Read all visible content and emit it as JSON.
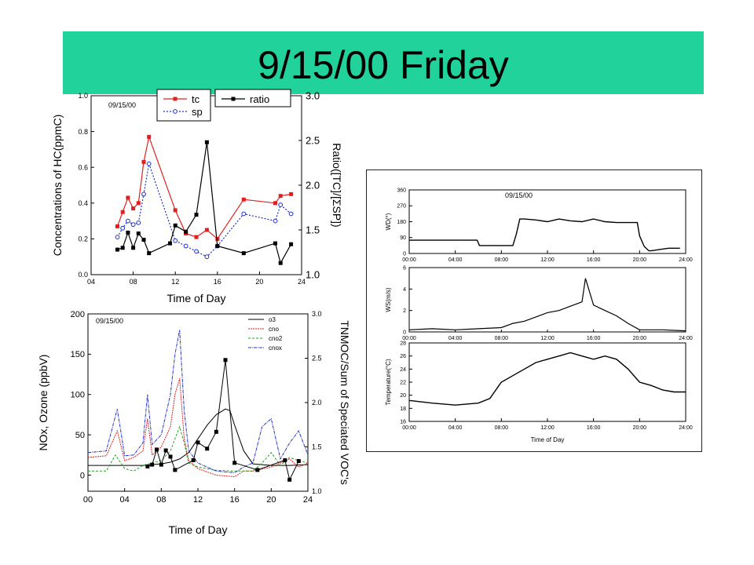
{
  "page": {
    "title": "9/15/00 Friday"
  },
  "chart_data": [
    {
      "type": "line",
      "annotation": "09/15/00",
      "xlabel": "Time of Day",
      "ylabel": "Concentrations of HC(ppmC)",
      "y2label": "Ratio([TC]/[ΣSP])",
      "xlim": [
        4,
        24
      ],
      "ylim": [
        0,
        1.0
      ],
      "y2lim": [
        1.0,
        3.0
      ],
      "xticks": [
        "04",
        "08",
        "12",
        "16",
        "20",
        "24"
      ],
      "yticks": [
        "0.0",
        "0.2",
        "0.4",
        "0.6",
        "0.8",
        "1.0"
      ],
      "y2ticks": [
        "1.0",
        "1.5",
        "2.0",
        "2.5",
        "3.0"
      ],
      "legend": "top",
      "series": [
        {
          "name": "tc",
          "axis": "left",
          "color": "#e02020",
          "marker": "square-filled",
          "x": [
            6.5,
            7.0,
            7.5,
            8.0,
            8.5,
            9.0,
            9.5,
            12.0,
            13.0,
            14.0,
            15.0,
            16.0,
            18.5,
            21.5,
            22.0,
            23.0
          ],
          "y": [
            0.27,
            0.35,
            0.43,
            0.37,
            0.4,
            0.63,
            0.77,
            0.36,
            0.23,
            0.21,
            0.25,
            0.2,
            0.42,
            0.4,
            0.44,
            0.45
          ]
        },
        {
          "name": "sp",
          "axis": "left",
          "color": "#2030d0",
          "marker": "circle-open",
          "x": [
            6.5,
            7.0,
            7.5,
            8.0,
            8.5,
            9.0,
            9.5,
            12.0,
            13.0,
            14.0,
            15.0,
            16.0,
            18.5,
            21.5,
            22.0,
            23.0
          ],
          "y": [
            0.21,
            0.26,
            0.3,
            0.28,
            0.29,
            0.45,
            0.62,
            0.19,
            0.16,
            0.13,
            0.1,
            0.16,
            0.34,
            0.3,
            0.39,
            0.34
          ]
        },
        {
          "name": "ratio",
          "axis": "right",
          "color": "#000000",
          "marker": "square-filled",
          "x": [
            6.5,
            7.0,
            7.5,
            8.0,
            8.5,
            9.0,
            9.5,
            11.5,
            12.0,
            13.0,
            14.0,
            15.0,
            16.0,
            18.5,
            21.5,
            22.0,
            23.0
          ],
          "y": [
            1.28,
            1.3,
            1.47,
            1.3,
            1.46,
            1.39,
            1.24,
            1.35,
            1.55,
            1.48,
            1.67,
            2.48,
            1.32,
            1.24,
            1.35,
            1.13,
            1.34
          ]
        }
      ]
    },
    {
      "type": "line",
      "annotation": "09/15/00",
      "xlabel": "Time of Day",
      "ylabel": "NOx, Ozone (ppbV)",
      "y2label": "TNMOC/Sum of Speciated VOC's",
      "xlim": [
        0,
        24
      ],
      "ylim": [
        -20,
        200
      ],
      "y2lim": [
        1.0,
        3.0
      ],
      "xticks": [
        "00",
        "04",
        "08",
        "12",
        "16",
        "20",
        "24"
      ],
      "yticks": [
        "0",
        "50",
        "100",
        "150",
        "200"
      ],
      "y2ticks": [
        "1.0",
        "1.5",
        "2.0",
        "2.5",
        "3.0"
      ],
      "legend": "top-right",
      "series": [
        {
          "name": "o3",
          "color": "#000000",
          "x": [
            0,
            2,
            4,
            6,
            8,
            9,
            10,
            11,
            12,
            13,
            14,
            15,
            15.5,
            16,
            17,
            18,
            20,
            22,
            24
          ],
          "y": [
            12,
            12,
            12,
            12,
            14,
            16,
            20,
            28,
            45,
            62,
            75,
            82,
            80,
            62,
            30,
            14,
            12,
            12,
            13
          ]
        },
        {
          "name": "cno",
          "color": "#e02020",
          "x": [
            0,
            2,
            3.2,
            4,
            5,
            6,
            6.5,
            7,
            8,
            9,
            9.5,
            10,
            10.5,
            11,
            12,
            14,
            16,
            17,
            18,
            20,
            21,
            22,
            23,
            24
          ],
          "y": [
            22,
            24,
            55,
            18,
            22,
            30,
            70,
            25,
            35,
            60,
            100,
            120,
            45,
            18,
            8,
            0,
            -2,
            5,
            5,
            10,
            15,
            20,
            10,
            15
          ]
        },
        {
          "name": "cno2",
          "color": "#22a022",
          "x": [
            0,
            2,
            3,
            4,
            5,
            6,
            7,
            8,
            9,
            9.5,
            10,
            10.5,
            11,
            12,
            14,
            16,
            18,
            19,
            20,
            21,
            22,
            23,
            24
          ],
          "y": [
            5,
            5,
            25,
            8,
            5,
            12,
            15,
            18,
            30,
            45,
            60,
            40,
            15,
            10,
            6,
            5,
            5,
            15,
            28,
            12,
            22,
            18,
            15
          ]
        },
        {
          "name": "cnox",
          "color": "#2030d0",
          "x": [
            0,
            2,
            3.2,
            4,
            5,
            6,
            6.5,
            7,
            8,
            9,
            9.5,
            10,
            10.5,
            11,
            12,
            14,
            16,
            17,
            18,
            19,
            20,
            21,
            22,
            23,
            24
          ],
          "y": [
            28,
            30,
            82,
            24,
            25,
            40,
            100,
            38,
            50,
            100,
            150,
            180,
            80,
            30,
            15,
            5,
            3,
            10,
            15,
            60,
            70,
            20,
            40,
            55,
            25
          ]
        },
        {
          "name": "",
          "axis": "right",
          "color": "#000000",
          "marker": "square-filled",
          "x": [
            6.5,
            7.0,
            7.5,
            8.0,
            8.5,
            9.0,
            9.5,
            11.5,
            12.0,
            13.0,
            14.0,
            15.0,
            16.0,
            18.5,
            21.5,
            22.0,
            23.0
          ],
          "y": [
            1.28,
            1.3,
            1.47,
            1.3,
            1.46,
            1.39,
            1.24,
            1.35,
            1.55,
            1.48,
            1.67,
            2.48,
            1.32,
            1.24,
            1.35,
            1.13,
            1.34
          ]
        }
      ]
    },
    {
      "type": "line",
      "annotation": "09/15/00",
      "ylabel": "WD(°)",
      "xlim": [
        0,
        24
      ],
      "ylim": [
        0,
        360
      ],
      "xticks": [
        "00:00",
        "04:00",
        "08:00",
        "12:00",
        "16:00",
        "20:00",
        "24:00"
      ],
      "yticks": [
        "0",
        "90",
        "180",
        "270",
        "360"
      ],
      "series": [
        {
          "name": "",
          "color": "#000000",
          "x": [
            0,
            2,
            4,
            5.9,
            6.1,
            9,
            9.3,
            9.6,
            10,
            11,
            12,
            13,
            14,
            15,
            16,
            17,
            18,
            19,
            19.8,
            20,
            20.4,
            20.8,
            21,
            22.5,
            23.5
          ],
          "y": [
            75,
            75,
            75,
            75,
            45,
            45,
            110,
            195,
            195,
            190,
            180,
            195,
            185,
            180,
            195,
            180,
            175,
            175,
            175,
            100,
            40,
            15,
            15,
            30,
            30
          ]
        }
      ]
    },
    {
      "type": "line",
      "ylabel": "WS(m/s)",
      "xlim": [
        0,
        24
      ],
      "ylim": [
        0,
        6
      ],
      "yticks": [
        "0",
        "2",
        "4",
        "6"
      ],
      "series": [
        {
          "name": "",
          "color": "#000000",
          "x": [
            0,
            2,
            4,
            6,
            8,
            9,
            10,
            11,
            12,
            13,
            14,
            15,
            15.3,
            16,
            17,
            18,
            19,
            20,
            22,
            24
          ],
          "y": [
            0.2,
            0.3,
            0.2,
            0.3,
            0.4,
            0.8,
            1.0,
            1.4,
            1.8,
            2.0,
            2.4,
            2.8,
            5.0,
            2.5,
            2.0,
            1.5,
            0.8,
            0.2,
            0.2,
            0.1
          ]
        }
      ]
    },
    {
      "type": "line",
      "ylabel": "Temperature(°C)",
      "xlabel": "Time of Day",
      "xlim": [
        0,
        24
      ],
      "ylim": [
        16,
        28
      ],
      "xticks": [
        "00:00",
        "04:00",
        "08:00",
        "12:00",
        "16:00",
        "20:00",
        "24:00"
      ],
      "yticks": [
        "16",
        "18",
        "20",
        "22",
        "24",
        "26",
        "28"
      ],
      "series": [
        {
          "name": "",
          "color": "#000000",
          "x": [
            0,
            2,
            4,
            6,
            7,
            8,
            9,
            10,
            11,
            12,
            13,
            14,
            15,
            16,
            17,
            18,
            19,
            20,
            21,
            22,
            23,
            24
          ],
          "y": [
            19.2,
            18.8,
            18.5,
            18.8,
            19.5,
            22.0,
            23.0,
            24.0,
            25.0,
            25.5,
            26.0,
            26.5,
            26.0,
            25.5,
            26.0,
            25.5,
            24.0,
            22.0,
            21.5,
            20.8,
            20.5,
            20.5
          ]
        }
      ]
    }
  ]
}
